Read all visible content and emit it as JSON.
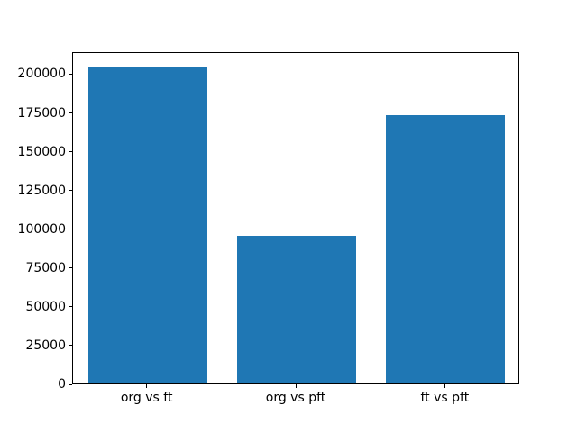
{
  "chart_data": {
    "type": "bar",
    "categories": [
      "org vs ft",
      "org vs pft",
      "ft vs pft"
    ],
    "values": [
      204000,
      95000,
      173000
    ],
    "yticks": [
      0,
      25000,
      50000,
      75000,
      100000,
      125000,
      150000,
      175000,
      200000
    ],
    "ylim": [
      0,
      214200
    ],
    "bar_color": "#1f77b4",
    "axis_color": "#000000",
    "background_color": "#ffffff",
    "grid": false,
    "legend": null,
    "bar_width_fraction": 0.8
  }
}
